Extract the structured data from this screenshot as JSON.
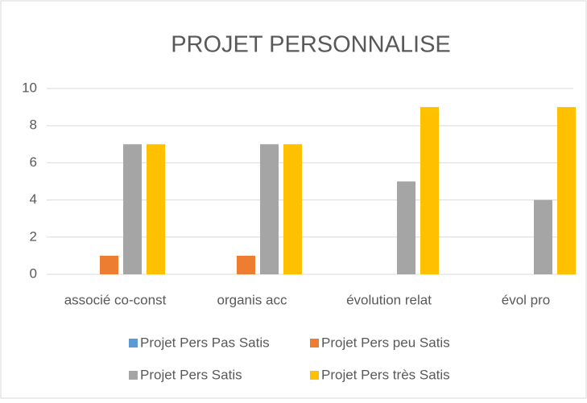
{
  "chart_data": {
    "type": "bar",
    "title": "PROJET PERSONNALISE",
    "categories": [
      "associé co-const",
      "organis acc",
      "évolution relat",
      "évol pro"
    ],
    "series": [
      {
        "name": "Projet Pers Pas Satis",
        "color": "#5b9bd5",
        "values": [
          0,
          0,
          0,
          0
        ]
      },
      {
        "name": "Projet Pers peu Satis",
        "color": "#ed7d31",
        "values": [
          1,
          1,
          0,
          0
        ]
      },
      {
        "name": "Projet Pers Satis",
        "color": "#a5a5a5",
        "values": [
          7,
          7,
          5,
          4
        ]
      },
      {
        "name": "Projet Pers très Satis",
        "color": "#ffc000",
        "values": [
          7,
          7,
          9,
          9
        ]
      }
    ],
    "ylim": [
      0,
      10
    ],
    "yticks": [
      0,
      2,
      4,
      6,
      8,
      10
    ],
    "grid": true,
    "legend": "bottom"
  }
}
